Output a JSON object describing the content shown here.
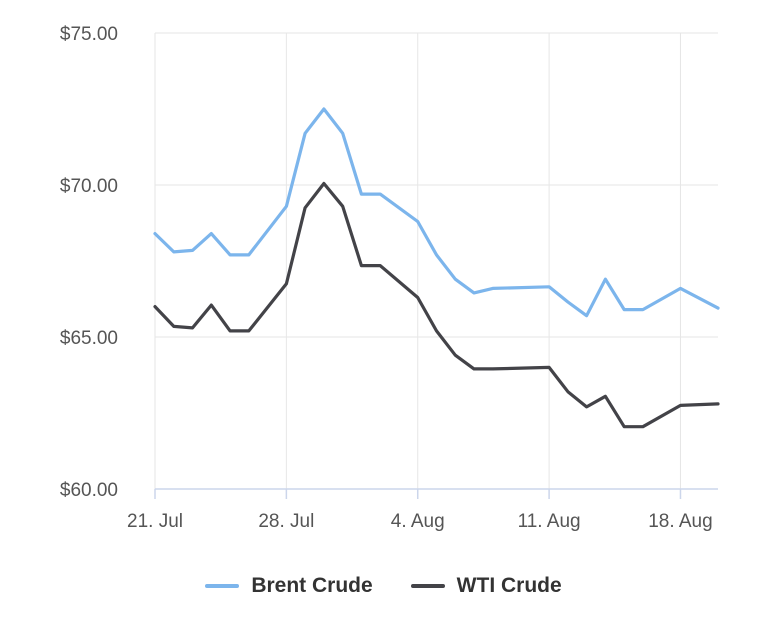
{
  "chart_data": {
    "type": "line",
    "title": "",
    "xlabel": "",
    "ylabel": "",
    "x_tick_labels": [
      "21. Jul",
      "28. Jul",
      "4. Aug",
      "11. Aug",
      "18. Aug"
    ],
    "y_tick_labels": [
      "$60.00",
      "$65.00",
      "$70.00",
      "$75.00"
    ],
    "y_ticks": [
      60,
      65,
      70,
      75
    ],
    "ylim": [
      60,
      75
    ],
    "xlim": [
      "2025-07-21",
      "2025-08-20"
    ],
    "grid": true,
    "legend_position": "bottom",
    "x": [
      "2025-07-21",
      "2025-07-22",
      "2025-07-23",
      "2025-07-24",
      "2025-07-25",
      "2025-07-26",
      "2025-07-28",
      "2025-07-29",
      "2025-07-30",
      "2025-07-31",
      "2025-08-01",
      "2025-08-02",
      "2025-08-04",
      "2025-08-05",
      "2025-08-06",
      "2025-08-07",
      "2025-08-08",
      "2025-08-11",
      "2025-08-12",
      "2025-08-13",
      "2025-08-14",
      "2025-08-15",
      "2025-08-16",
      "2025-08-18",
      "2025-08-20"
    ],
    "series": [
      {
        "name": "Brent Crude",
        "color": "#7cb5ec",
        "values": [
          68.4,
          67.8,
          67.85,
          68.4,
          67.7,
          67.7,
          69.3,
          71.7,
          72.5,
          71.7,
          69.7,
          69.7,
          68.8,
          67.7,
          66.9,
          66.45,
          66.6,
          66.65,
          66.15,
          65.7,
          66.9,
          65.9,
          65.9,
          66.6,
          65.95
        ]
      },
      {
        "name": "WTI Crude",
        "color": "#434348",
        "values": [
          66.0,
          65.35,
          65.3,
          66.05,
          65.2,
          65.2,
          66.75,
          69.25,
          70.05,
          69.3,
          67.35,
          67.35,
          66.3,
          65.2,
          64.4,
          63.95,
          63.95,
          64.0,
          63.2,
          62.7,
          63.05,
          62.05,
          62.05,
          62.75,
          62.8
        ]
      }
    ]
  }
}
